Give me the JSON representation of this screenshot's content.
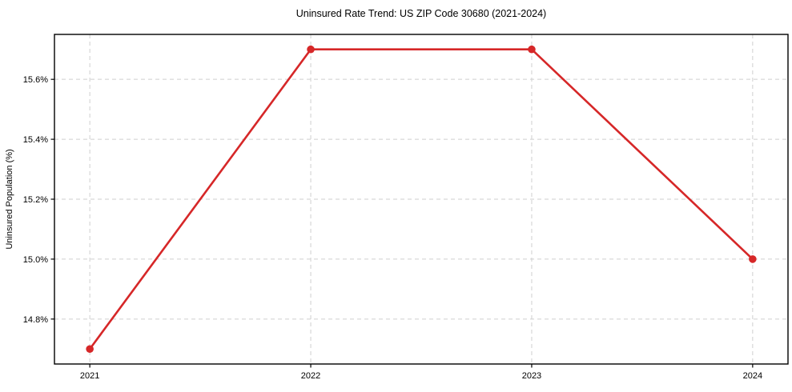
{
  "chart_data": {
    "type": "line",
    "title": "Uninsured Rate Trend: US ZIP Code 30680 (2021-2024)",
    "xlabel": "",
    "ylabel": "Uninsured Population (%)",
    "x": [
      2021,
      2022,
      2023,
      2024
    ],
    "values": [
      14.7,
      15.7,
      15.7,
      15.0
    ],
    "x_tick_labels": [
      "2021",
      "2022",
      "2023",
      "2024"
    ],
    "y_ticks": [
      14.8,
      15.0,
      15.2,
      15.4,
      15.6
    ],
    "y_tick_labels": [
      "14.8%",
      "15.0%",
      "15.2%",
      "15.4%",
      "15.6%"
    ],
    "xlim": [
      2020.84,
      2024.16
    ],
    "ylim": [
      14.65,
      15.75
    ],
    "grid": true,
    "grid_style": "dashed",
    "legend": false,
    "line_color": "#d62728",
    "marker": "circle",
    "grid_color": "#cfcfcf",
    "spine_color": "#000000",
    "background": "#ffffff"
  }
}
